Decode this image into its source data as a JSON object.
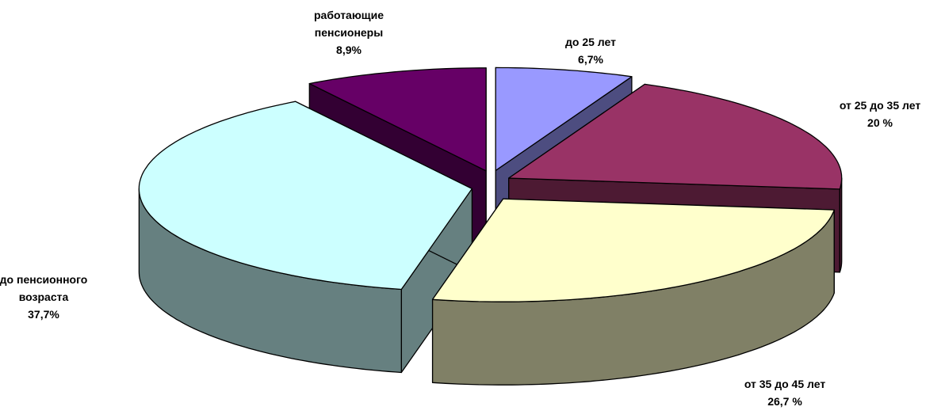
{
  "chart_data": {
    "type": "pie3d",
    "categories": [
      "до 25 лет",
      "от 25 до 35 лет",
      "от 35 до 45 лет",
      "до пенсионного возраста",
      "работающие пенсионеры"
    ],
    "values": [
      6.7,
      20,
      26.7,
      37.7,
      8.9
    ],
    "value_labels": [
      "6,7%",
      "20 %",
      "26,7 %",
      "37,7%",
      "8,9%"
    ],
    "colors": [
      "#9999ff",
      "#993366",
      "#ffffcc",
      "#ccffff",
      "#660066"
    ],
    "side_colors": [
      "#4d4d80",
      "#4d1a33",
      "#808066",
      "#668080",
      "#330033"
    ]
  }
}
